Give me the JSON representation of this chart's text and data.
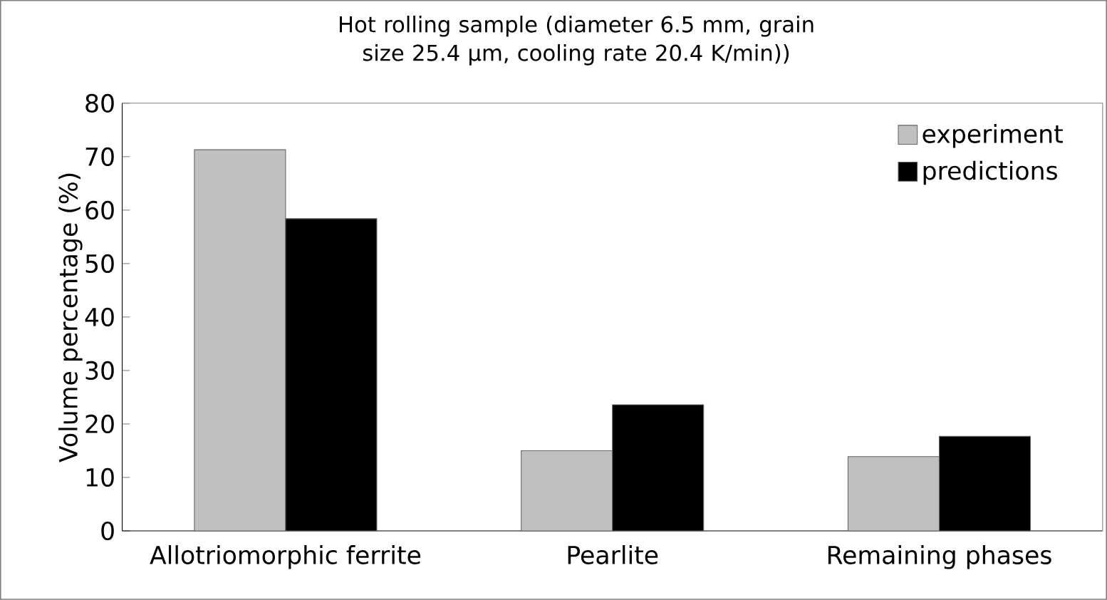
{
  "chart_data": {
    "type": "bar",
    "title": "Hot rolling sample (diameter 6.5 mm, grain size 25.4 μm, cooling rate 20.4 K/min))",
    "ylabel": "Volume percentage (%)",
    "categories": [
      "Allotriomorphic ferrite",
      "Pearlite",
      "Remaining phases"
    ],
    "series": [
      {
        "name": "experiment",
        "color": "#c0c0c0",
        "values": [
          71.3,
          15.0,
          13.9
        ]
      },
      {
        "name": "predictions",
        "color": "#000000",
        "values": [
          58.4,
          23.6,
          17.7
        ]
      }
    ],
    "ylim": [
      0,
      80
    ],
    "yticks": [
      0,
      10,
      20,
      30,
      40,
      50,
      60,
      70,
      80
    ],
    "grid": false,
    "legend": "top right"
  }
}
